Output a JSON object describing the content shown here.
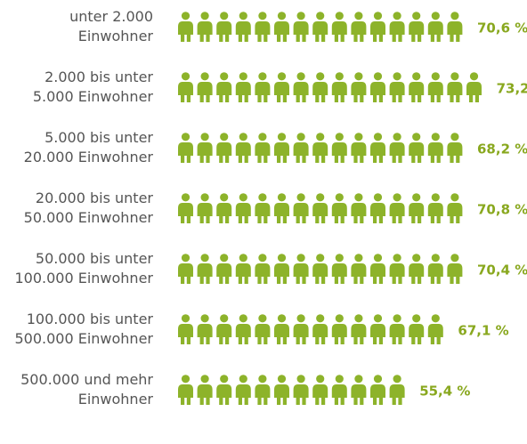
{
  "chart_data": {
    "type": "pictogram",
    "categories": [
      "unter 2.000\nEinwohner",
      "2.000 bis unter\n5.000 Einwohner",
      "5.000 bis unter\n20.000 Einwohner",
      "20.000 bis unter\n50.000 Einwohner",
      "50.000 bis unter\n100.000 Einwohner",
      "100.000 bis unter\n500.000 Einwohner",
      "500.000 und mehr\nEinwohner"
    ],
    "values": [
      70.6,
      73.2,
      68.2,
      70.8,
      70.4,
      67.1,
      55.4
    ],
    "value_labels": [
      "70,6 %",
      "73,2",
      "68,2 %",
      "70,8 %",
      "70,4 %",
      "67,1 %",
      "55,4 %"
    ],
    "color": "#8db32a",
    "label_color": "#89a81f"
  }
}
